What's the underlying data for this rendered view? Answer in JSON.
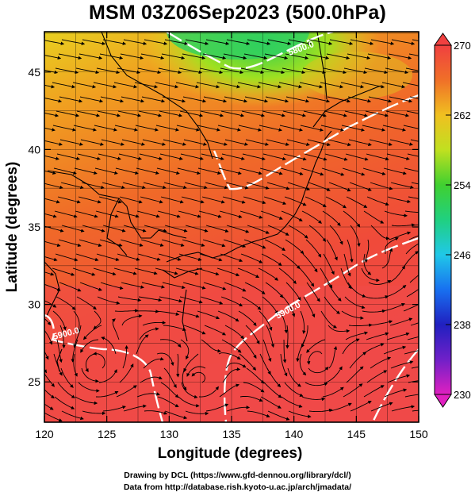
{
  "title": "MSM 03Z06Sep2023 (500.0hPa)",
  "x_axis": {
    "label": "Longitude (degrees)",
    "ticks": [
      "120",
      "125",
      "130",
      "135",
      "140",
      "145",
      "150"
    ],
    "range": [
      120,
      150
    ]
  },
  "y_axis": {
    "label": "Latitude  (degrees)",
    "ticks": [
      "25",
      "30",
      "35",
      "40",
      "45"
    ],
    "range": [
      22.4,
      47.6
    ]
  },
  "colorbar": {
    "ticks": [
      "270",
      "262",
      "254",
      "246",
      "238",
      "230"
    ],
    "range": [
      230,
      270
    ],
    "colors": [
      "#e020c0",
      "#3020c0",
      "#1060f0",
      "#20c8e8",
      "#20d060",
      "#80e020",
      "#e8e020",
      "#f8a020",
      "#f06030",
      "#f04040"
    ]
  },
  "contour_labels": [
    "5900.0",
    "5900.0",
    "5800.0"
  ],
  "footer": {
    "line1": "Drawing by DCL (https://www.gfd-dennou.org/library/dcl/)",
    "line2": "Data from http://database.rish.kyoto-u.ac.jp/arch/jmadata/"
  },
  "colors": {
    "contour": "#ffffff",
    "streamline": "#000000",
    "grid": "#000000"
  }
}
